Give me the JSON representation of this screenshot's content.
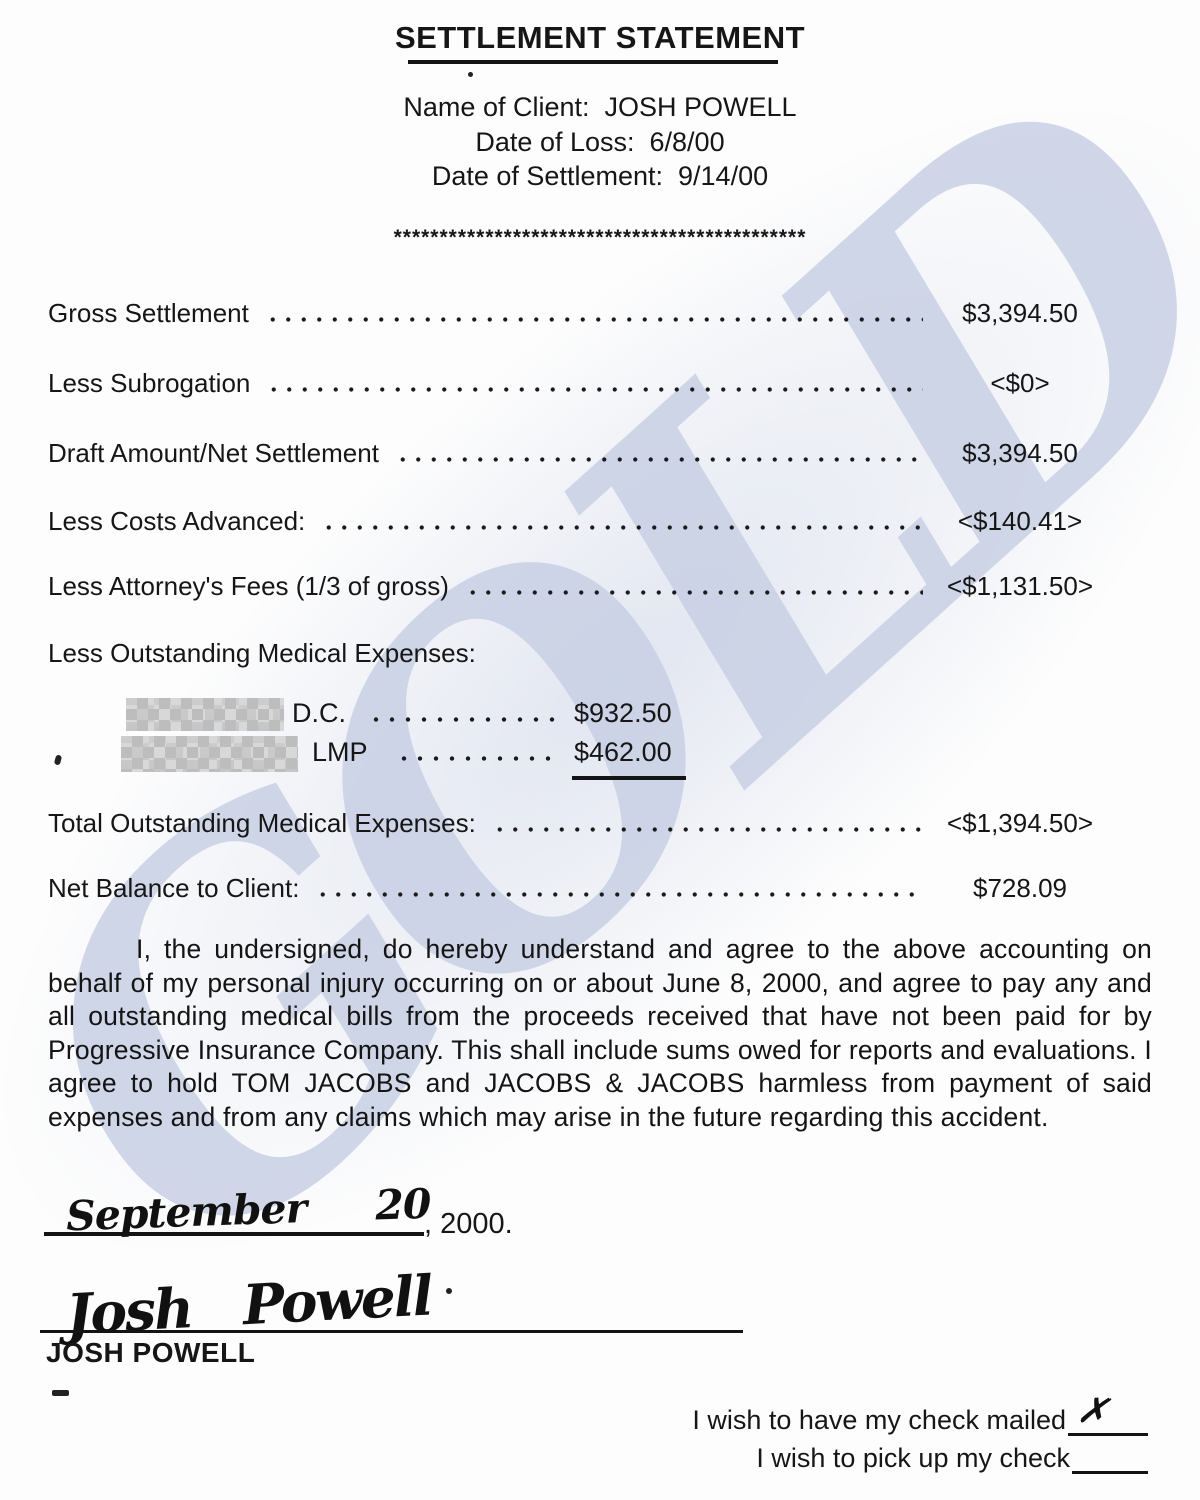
{
  "doc": {
    "title": "SETTLEMENT STATEMENT",
    "header": {
      "client_label": "Name of Client:",
      "client_value": "JOSH POWELL",
      "loss_label": "Date of Loss:",
      "loss_value": "6/8/00",
      "settlement_label": "Date of Settlement:",
      "settlement_value": "9/14/00"
    },
    "separator": "*********************************************",
    "line_items": [
      {
        "label": "Gross Settlement",
        "amount": "$3,394.50"
      },
      {
        "label": "Less Subrogation",
        "amount": "<$0>"
      },
      {
        "label": "Draft Amount/Net Settlement",
        "amount": "$3,394.50"
      },
      {
        "label": "Less Costs Advanced:",
        "amount": "<$140.41>"
      },
      {
        "label": "Less Attorney's Fees (1/3 of gross)",
        "amount": "<$1,131.50>"
      }
    ],
    "medical": {
      "section_label": "Less Outstanding Medical Expenses:",
      "items": [
        {
          "provider_redacted": true,
          "credential": "D.C.",
          "amount": "$932.50"
        },
        {
          "provider_redacted": true,
          "credential": "LMP",
          "amount": "$462.00",
          "underlined": true
        }
      ]
    },
    "totals": [
      {
        "label": "Total Outstanding Medical Expenses:",
        "amount": "<$1,394.50>"
      },
      {
        "label": "Net Balance to Client:",
        "amount": "$728.09"
      }
    ],
    "paragraph": "I, the undersigned, do hereby understand and agree to the above accounting on behalf of my personal injury occurring on or about June 8, 2000, and agree to pay any and all outstanding medical bills from the proceeds received that have not been paid for by Progressive Insurance Company.  This shall include sums owed for reports and evaluations.  I agree to hold TOM JACOBS and JACOBS & JACOBS harmless from payment of said expenses and from any claims which may arise in the future regarding this accident.",
    "date_line": {
      "handwritten": "September 20",
      "printed_suffix": ", 2000."
    },
    "signature": {
      "handwritten": "Josh Powell",
      "printed_name": "JOSH POWELL"
    },
    "options": [
      {
        "label": "I wish to have my check mailed",
        "mark": "✗"
      },
      {
        "label": "I wish to pick up my check",
        "mark": ""
      }
    ],
    "watermark": "GOLD",
    "colors": {
      "ink": "#161616",
      "watermark_blue": "#c7cfe4",
      "paper": "#fdfdfd"
    }
  }
}
